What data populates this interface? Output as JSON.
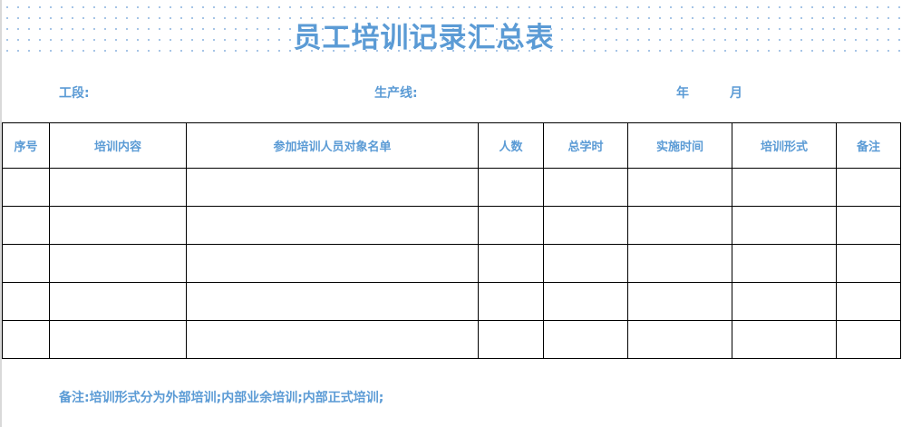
{
  "title": "员工培训记录汇总表",
  "fields": {
    "section": "工段:",
    "line": "生产线:",
    "year": "年",
    "month": "月"
  },
  "table": {
    "headers": [
      "序号",
      "培训内容",
      "参加培训人员对象名单",
      "人数",
      "总学时",
      "实施时间",
      "培训形式",
      "备注"
    ],
    "rows": [
      [
        "",
        "",
        "",
        "",
        "",
        "",
        "",
        ""
      ],
      [
        "",
        "",
        "",
        "",
        "",
        "",
        "",
        ""
      ],
      [
        "",
        "",
        "",
        "",
        "",
        "",
        "",
        ""
      ],
      [
        "",
        "",
        "",
        "",
        "",
        "",
        "",
        ""
      ],
      [
        "",
        "",
        "",
        "",
        "",
        "",
        "",
        ""
      ]
    ]
  },
  "note": "备注:培训形式分为外部培训;内部业余培训;内部正式培训;",
  "colors": {
    "accent": "#5b9bd5",
    "border": "#000000"
  }
}
